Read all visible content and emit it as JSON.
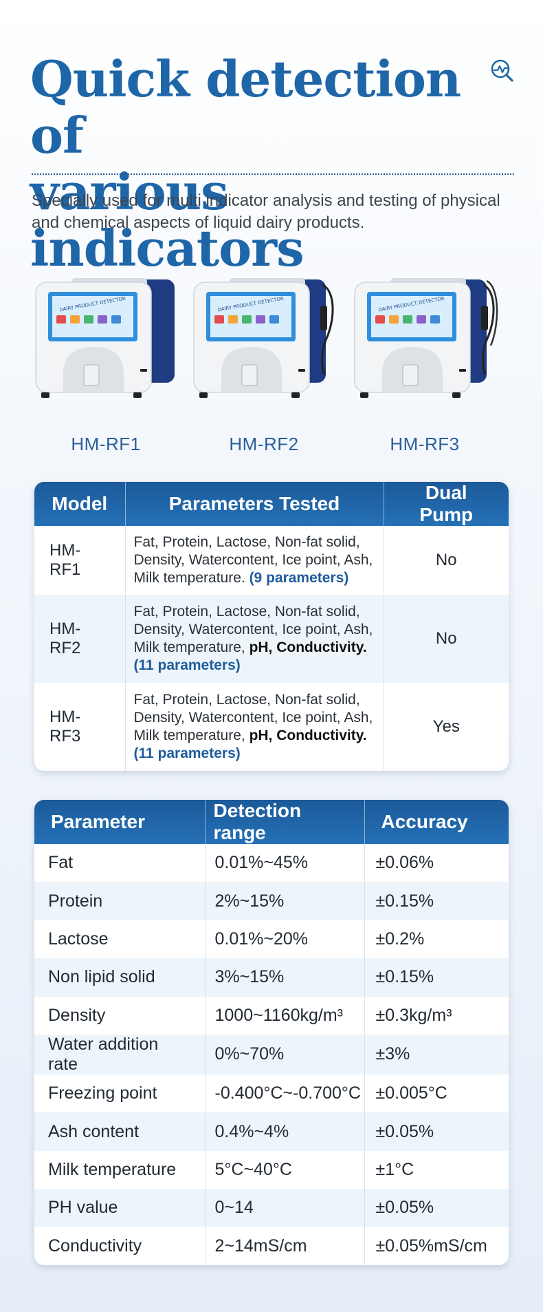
{
  "title": {
    "line1": "Quick detection of",
    "line2": "various indicators"
  },
  "intro": "Specially used for multi indicator analysis and testing of physical and chemical aspects of liquid dairy products.",
  "products": [
    {
      "label": "HM-RF1",
      "screen_text": "DAIRY PRODUCT DETECTOR"
    },
    {
      "label": "HM-RF2",
      "screen_text": "DAIRY PRODUCT DETECTOR"
    },
    {
      "label": "HM-RF3",
      "screen_text": "DAIRY PRODUCT DETECTOR"
    }
  ],
  "models_table": {
    "headers": [
      "Model",
      "Parameters Tested",
      "Dual Pump"
    ],
    "rows": [
      {
        "model": "HM-RF1",
        "params": "Fat, Protein, Lactose, Non-fat solid, Density, Watercontent, Ice point, Ash, Milk temperature.",
        "extra": "",
        "count": "(9 parameters)",
        "pump": "No"
      },
      {
        "model": "HM-RF2",
        "params": "Fat, Protein, Lactose, Non-fat solid, Density, Watercontent, Ice point, Ash, Milk temperature,",
        "extra": "pH, Conductivity.",
        "count": "(11 parameters)",
        "pump": "No"
      },
      {
        "model": "HM-RF3",
        "params": "Fat, Protein, Lactose, Non-fat solid, Density, Watercontent, Ice point, Ash, Milk temperature,",
        "extra": "pH, Conductivity.",
        "count": "(11 parameters)",
        "pump": "Yes"
      }
    ]
  },
  "specs_table": {
    "headers": [
      "Parameter",
      "Detection range",
      "Accuracy"
    ],
    "rows": [
      {
        "parameter": "Fat",
        "range": "0.01%~45%",
        "accuracy": "±0.06%"
      },
      {
        "parameter": "Protein",
        "range": "2%~15%",
        "accuracy": "±0.15%"
      },
      {
        "parameter": "Lactose",
        "range": "0.01%~20%",
        "accuracy": "±0.2%"
      },
      {
        "parameter": "Non lipid solid",
        "range": "3%~15%",
        "accuracy": "±0.15%"
      },
      {
        "parameter": "Density",
        "range": "1000~1160kg/m³",
        "accuracy": "±0.3kg/m³"
      },
      {
        "parameter": "Water addition rate",
        "range": "0%~70%",
        "accuracy": "±3%"
      },
      {
        "parameter": "Freezing point",
        "range": "-0.400°C~-0.700°C",
        "accuracy": "±0.005°C"
      },
      {
        "parameter": "Ash content",
        "range": "0.4%~4%",
        "accuracy": "±0.05%"
      },
      {
        "parameter": "Milk temperature",
        "range": "5°C~40°C",
        "accuracy": "±1°C"
      },
      {
        "parameter": "PH value",
        "range": "0~14",
        "accuracy": "±0.05%"
      },
      {
        "parameter": "Conductivity",
        "range": "2~14mS/cm",
        "accuracy": "±0.05%mS/cm"
      }
    ]
  },
  "colors": {
    "accent": "#1e66a8",
    "header": "#1b5a9a",
    "stripe": "#eef5fa"
  },
  "icons": {
    "top_right": "analytics-icon"
  }
}
